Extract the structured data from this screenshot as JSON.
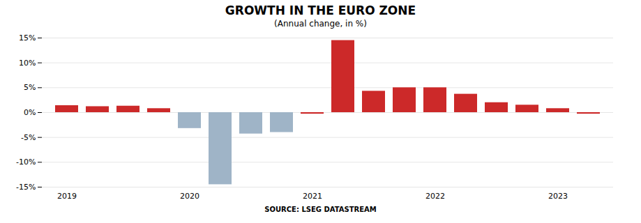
{
  "chart_data": {
    "type": "bar",
    "title": "GROWTH IN THE EURO ZONE",
    "subtitle": "(Annual change, in %)",
    "source": "SOURCE: LSEG DATASTREAM",
    "categories": [
      "2019",
      null,
      null,
      null,
      "2020",
      null,
      null,
      null,
      "2021",
      null,
      null,
      null,
      "2022",
      null,
      null,
      null,
      "2023",
      null
    ],
    "values": [
      1.4,
      1.2,
      1.3,
      0.8,
      -3.2,
      -14.5,
      -4.3,
      -4.0,
      -0.3,
      14.5,
      4.3,
      5.0,
      5.0,
      3.7,
      2.0,
      1.5,
      0.8,
      -0.3
    ],
    "colors": [
      "#cc2929",
      "#cc2929",
      "#cc2929",
      "#cc2929",
      "#9fb4c7",
      "#9fb4c7",
      "#9fb4c7",
      "#9fb4c7",
      "#cc2929",
      "#cc2929",
      "#cc2929",
      "#cc2929",
      "#cc2929",
      "#cc2929",
      "#cc2929",
      "#cc2929",
      "#cc2929",
      "#cc2929"
    ],
    "ylim": [
      -15,
      15
    ],
    "yticks": [
      {
        "value": -15,
        "label": "-15%"
      },
      {
        "value": -10,
        "label": "-10%"
      },
      {
        "value": -5,
        "label": "-5%"
      },
      {
        "value": 0,
        "label": "0%"
      },
      {
        "value": 5,
        "label": "5%"
      },
      {
        "value": 10,
        "label": "10%"
      },
      {
        "value": 15,
        "label": "15%"
      }
    ],
    "grid": true
  }
}
